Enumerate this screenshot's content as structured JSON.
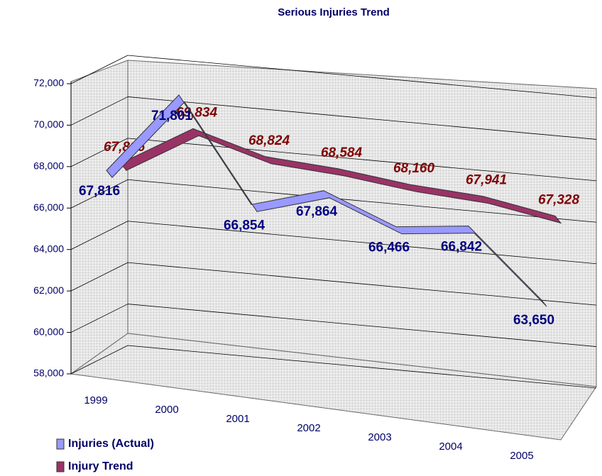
{
  "chart_data": {
    "type": "line",
    "title": "Serious Injuries Trend",
    "categories": [
      "1999",
      "2000",
      "2001",
      "2002",
      "2003",
      "2004",
      "2005"
    ],
    "series": [
      {
        "name": "Injuries (Actual)",
        "color": "#9999ff",
        "values": [
          67816,
          71801,
          66854,
          67864,
          66466,
          66842,
          63650
        ],
        "value_labels": [
          "67,816",
          "71,801",
          "66,854",
          "67,864",
          "66,466",
          "66,842",
          "63,650"
        ]
      },
      {
        "name": "Injury Trend",
        "color": "#993366",
        "values": [
          67816,
          69834,
          68824,
          68584,
          68160,
          67941,
          67328
        ],
        "value_labels": [
          "67,816",
          "69,834",
          "68,824",
          "68,584",
          "68,160",
          "67,941",
          "67,328"
        ]
      }
    ],
    "ylim": [
      58000,
      72000
    ],
    "yticks": [
      {
        "value": 58000,
        "label": "58,000"
      },
      {
        "value": 60000,
        "label": "60,000"
      },
      {
        "value": 62000,
        "label": "62,000"
      },
      {
        "value": 64000,
        "label": "64,000"
      },
      {
        "value": 66000,
        "label": "66,000"
      },
      {
        "value": 68000,
        "label": "68,000"
      },
      {
        "value": 70000,
        "label": "70,000"
      },
      {
        "value": 72000,
        "label": "72,000"
      }
    ],
    "grid": true
  }
}
